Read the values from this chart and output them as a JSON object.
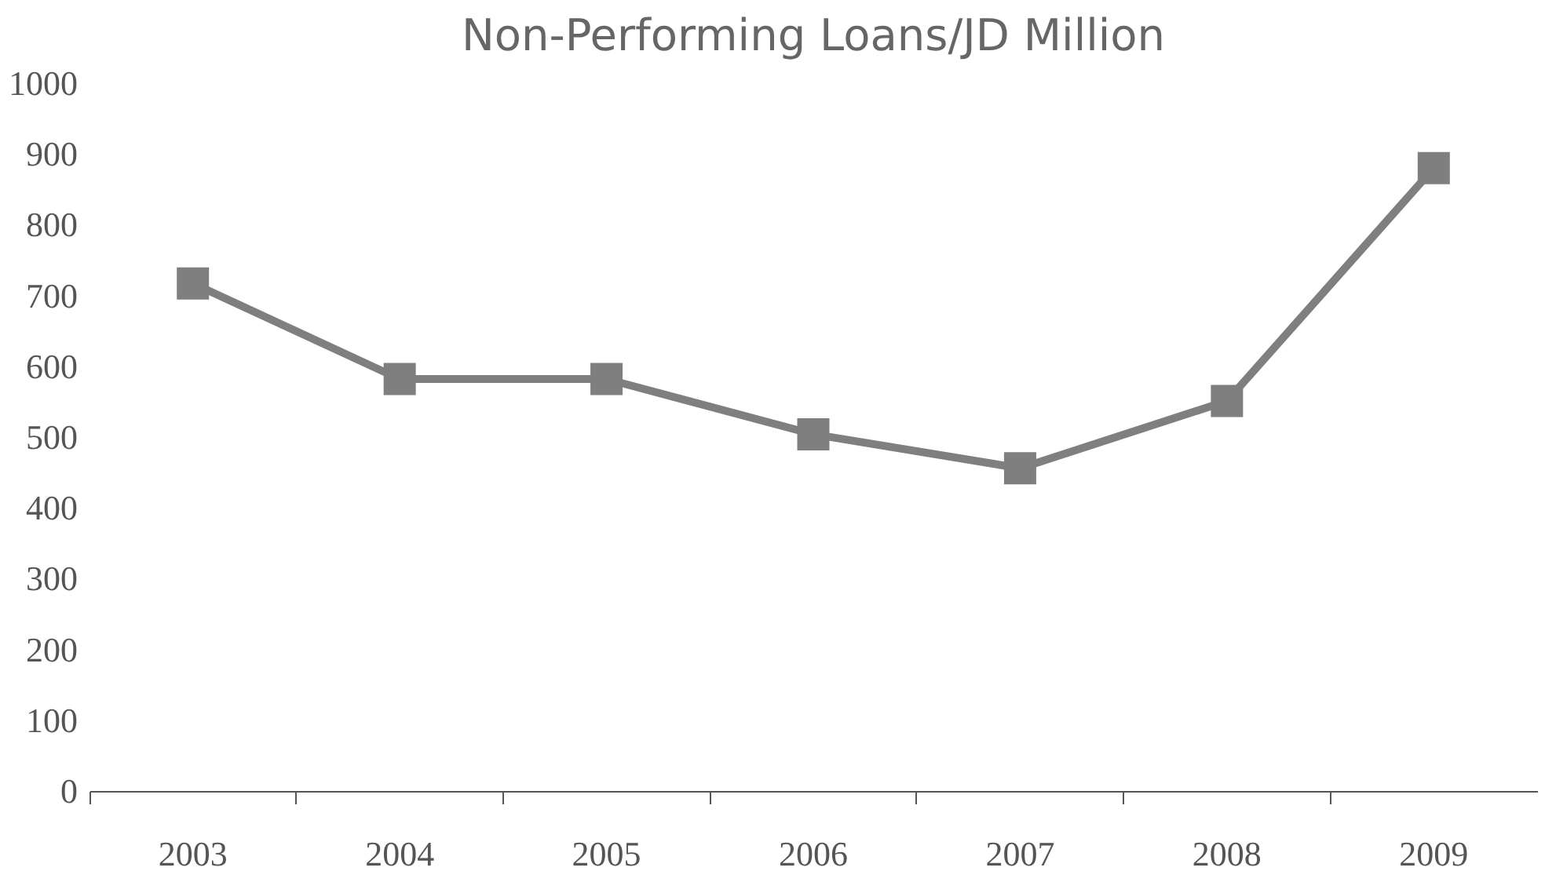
{
  "chart_data": {
    "type": "line",
    "title": "Non-Performing Loans/JD Million",
    "categories": [
      "2003",
      "2004",
      "2005",
      "2006",
      "2007",
      "2008",
      "2009"
    ],
    "series": [
      {
        "color": "#7f7f7f",
        "values": [
          717,
          582,
          582,
          504,
          456,
          551,
          880
        ]
      }
    ],
    "ylim": [
      0,
      1000
    ],
    "yticks": [
      0,
      100,
      200,
      300,
      400,
      500,
      600,
      700,
      800,
      900,
      1000
    ],
    "grid": false,
    "legend": false,
    "marker": "square",
    "line_style": "solid"
  }
}
